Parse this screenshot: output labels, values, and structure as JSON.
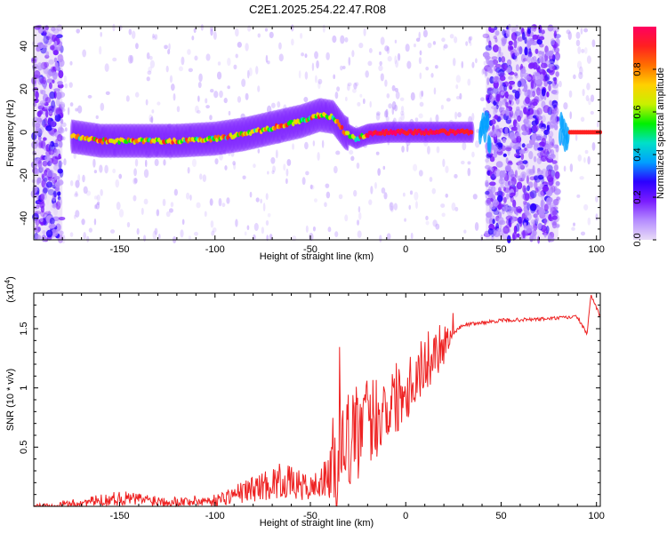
{
  "title": "C2E1.2025.254.22.47.R08",
  "colors": {
    "spectrogram_ramp": [
      "#e8dcf7",
      "#b58cff",
      "#7a1cff",
      "#2b00ff",
      "#00a0ff",
      "#00e0c8",
      "#00f000",
      "#c8f000",
      "#ffd000",
      "#ff7000",
      "#ff2020",
      "#ff0060"
    ],
    "snr_line": "#ee2222",
    "frame": "#000000"
  },
  "chart_data": [
    {
      "type": "heatmap",
      "name": "spectrogram",
      "xlabel": "Height of straight line (km)",
      "ylabel": "Frequency (Hz)",
      "xlim": [
        -195,
        102
      ],
      "ylim": [
        -50,
        49
      ],
      "xticks": [
        -150,
        -100,
        -50,
        0,
        50,
        100
      ],
      "yticks": [
        -40,
        -20,
        0,
        20,
        40
      ],
      "ridge": [
        {
          "x": -175,
          "y": -2
        },
        {
          "x": -160,
          "y": -4
        },
        {
          "x": -140,
          "y": -4
        },
        {
          "x": -120,
          "y": -4
        },
        {
          "x": -100,
          "y": -3
        },
        {
          "x": -85,
          "y": -1
        },
        {
          "x": -70,
          "y": 2
        },
        {
          "x": -55,
          "y": 5
        },
        {
          "x": -45,
          "y": 8
        },
        {
          "x": -38,
          "y": 7
        },
        {
          "x": -32,
          "y": 0
        },
        {
          "x": -26,
          "y": -3
        },
        {
          "x": -20,
          "y": -1
        },
        {
          "x": -10,
          "y": 0
        },
        {
          "x": 0,
          "y": 0
        },
        {
          "x": 10,
          "y": 0
        },
        {
          "x": 20,
          "y": 0
        },
        {
          "x": 35,
          "y": 0
        }
      ],
      "noise_bands": [
        {
          "x_from": -195,
          "x_to": -180
        },
        {
          "x_from": 42,
          "x_to": 80
        }
      ],
      "colorbar": {
        "label": "Normalized spectral amplitude",
        "range": [
          0,
          1
        ],
        "ticks": [
          0.0,
          0.2,
          0.4,
          0.6,
          0.8
        ]
      }
    },
    {
      "type": "line",
      "name": "snr",
      "xlabel": "Height of straight line (km)",
      "ylabel": "SNR (10 * v/v)",
      "scale_label": "(x10",
      "scale_exponent": "4",
      "xlim": [
        -195,
        102
      ],
      "ylim": [
        0,
        1.8
      ],
      "xticks": [
        -150,
        -100,
        -50,
        0,
        50,
        100
      ],
      "yticks": [
        0.5,
        1.0,
        1.5
      ],
      "trend": [
        {
          "x": -195,
          "y": 0.0
        },
        {
          "x": -170,
          "y": 0.03
        },
        {
          "x": -150,
          "y": 0.07
        },
        {
          "x": -120,
          "y": 0.04
        },
        {
          "x": -100,
          "y": 0.05
        },
        {
          "x": -80,
          "y": 0.15
        },
        {
          "x": -65,
          "y": 0.22
        },
        {
          "x": -50,
          "y": 0.15
        },
        {
          "x": -40,
          "y": 0.25
        },
        {
          "x": -30,
          "y": 0.55
        },
        {
          "x": -20,
          "y": 0.7
        },
        {
          "x": -10,
          "y": 0.85
        },
        {
          "x": 0,
          "y": 1.0
        },
        {
          "x": 10,
          "y": 1.2
        },
        {
          "x": 20,
          "y": 1.4
        },
        {
          "x": 30,
          "y": 1.53
        },
        {
          "x": 50,
          "y": 1.57
        },
        {
          "x": 70,
          "y": 1.58
        },
        {
          "x": 90,
          "y": 1.6
        },
        {
          "x": 95,
          "y": 1.45
        },
        {
          "x": 97,
          "y": 1.78
        },
        {
          "x": 102,
          "y": 1.6
        }
      ]
    }
  ]
}
